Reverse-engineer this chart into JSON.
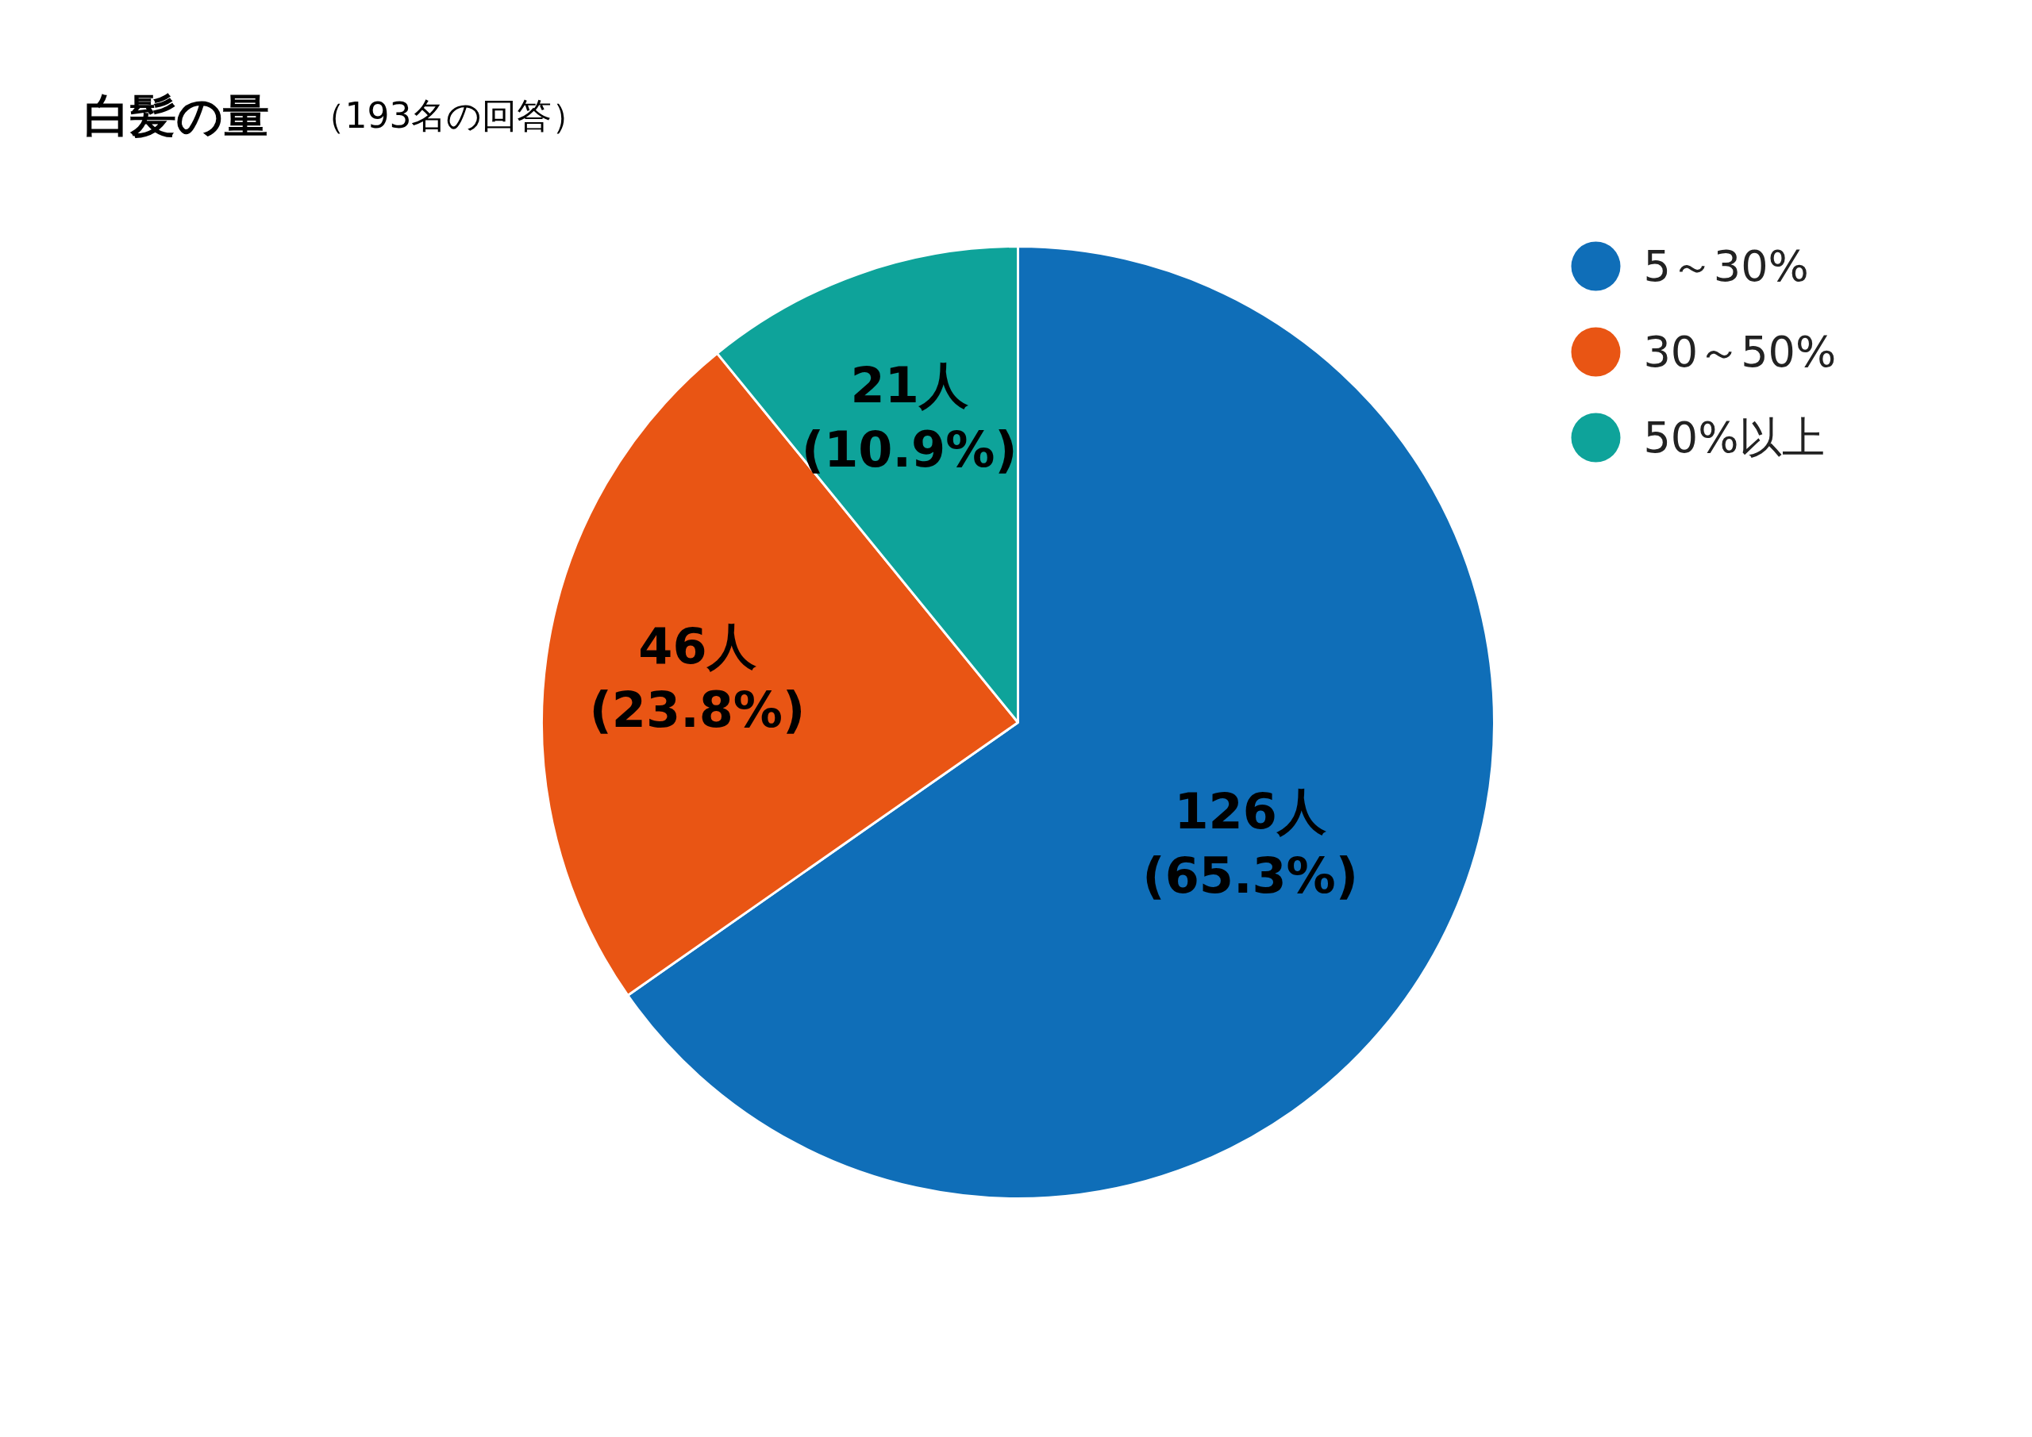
{
  "chart_data": {
    "type": "pie",
    "title": "白髪の量",
    "subtitle": "（193名の回答）",
    "categories": [
      "5～30%",
      "30～50%",
      "50%以上"
    ],
    "values": [
      126,
      46,
      21
    ],
    "colors": [
      "#0f6eb8",
      "#e95514",
      "#0ea39a"
    ],
    "value_labels": [
      "126人\n(65.3%)",
      "46人\n(23.8%)",
      "21人\n(10.9%)"
    ],
    "legend": "top right"
  }
}
